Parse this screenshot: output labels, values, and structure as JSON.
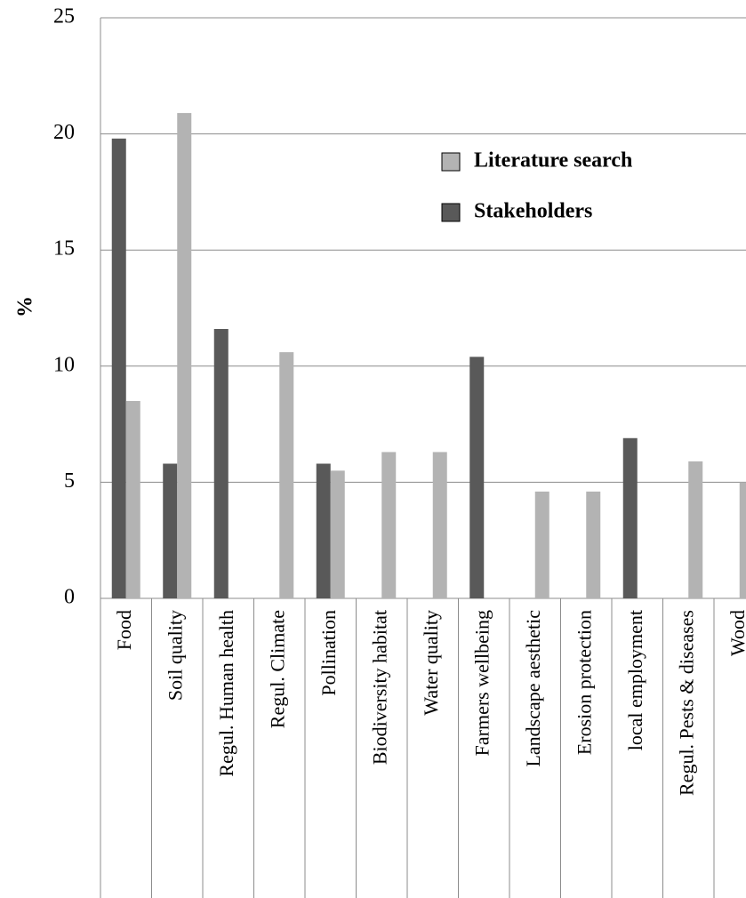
{
  "chart_data": {
    "type": "bar",
    "ylabel": "%",
    "categories": [
      "Food",
      "Soil quality",
      "Regul. Human health",
      "Regul. Climate",
      "Pollination",
      "Biodiversity habitat",
      "Water quality",
      "Farmers wellbeing",
      "Landscape aesthetic",
      "Erosion protection",
      "local employment",
      "Regul. Pests & diseases",
      "Wood"
    ],
    "series": [
      {
        "name": "Stakeholders",
        "color": "#595959",
        "values": [
          19.8,
          5.8,
          11.6,
          0,
          5.8,
          0,
          0,
          10.4,
          0,
          0,
          6.9,
          0,
          0
        ]
      },
      {
        "name": "Literature search",
        "color": "#b3b3b3",
        "values": [
          8.5,
          20.9,
          0,
          10.6,
          5.5,
          6.3,
          6.3,
          0,
          4.6,
          4.6,
          0,
          5.9,
          5.0
        ]
      }
    ],
    "ylim": [
      0,
      25
    ],
    "yticks": [
      0,
      5,
      10,
      15,
      20,
      25
    ],
    "grid": true
  }
}
